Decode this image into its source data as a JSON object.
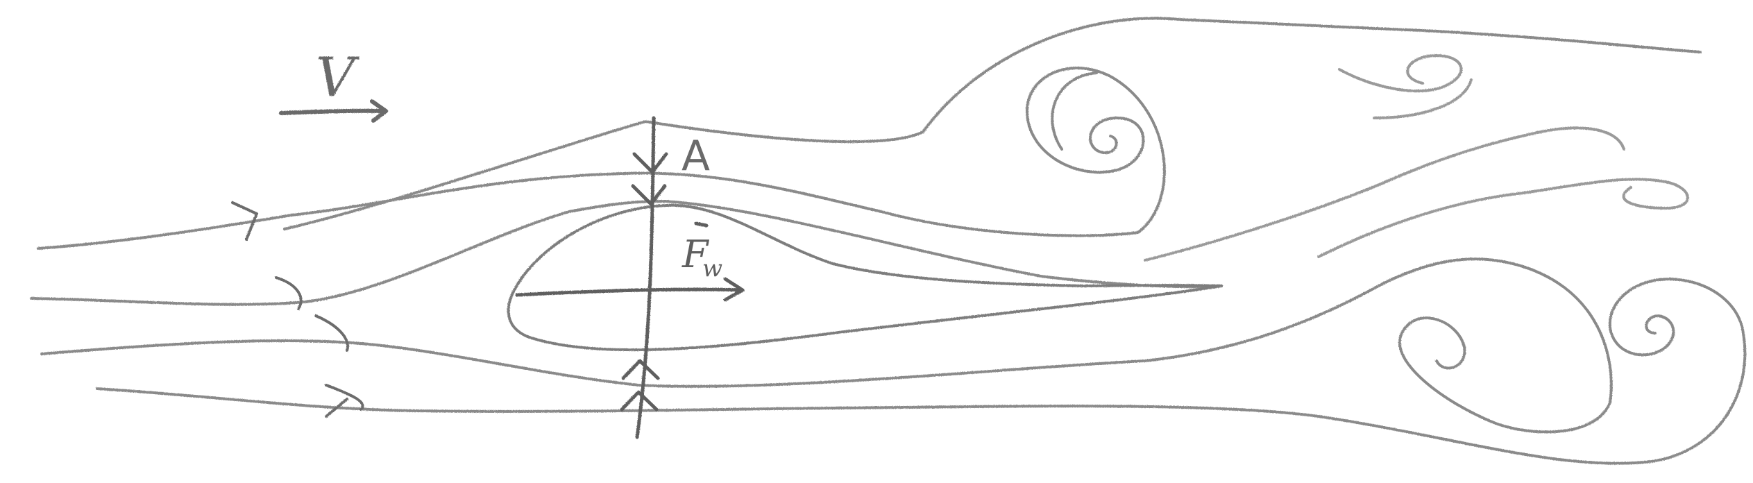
{
  "labels": {
    "velocity": "V",
    "point": "A",
    "force": "F",
    "force_subscript": "w"
  },
  "colors": {
    "background": "#ffffff",
    "pencil": "#7a7a7a",
    "pencil_dark": "#5f5f5f"
  }
}
